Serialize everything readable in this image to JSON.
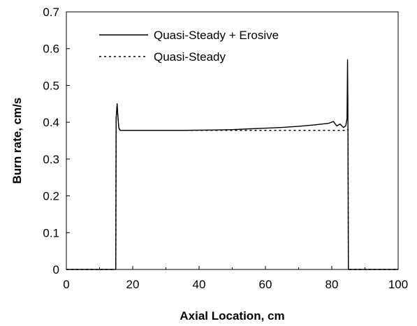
{
  "chart_data": {
    "type": "line",
    "xlabel": "Axial Location, cm",
    "ylabel": "Burn rate, cm/s",
    "xlim": [
      0,
      100
    ],
    "ylim": [
      0,
      0.7
    ],
    "xticks": [
      0,
      20,
      40,
      60,
      80,
      100
    ],
    "yticks": [
      0,
      0.1,
      0.2,
      0.3,
      0.4,
      0.5,
      0.6,
      0.7
    ],
    "xtick_labels": [
      "0",
      "20",
      "40",
      "60",
      "80",
      "100"
    ],
    "ytick_labels": [
      "0",
      "0.1",
      "0.2",
      "0.3",
      "0.4",
      "0.5",
      "0.6",
      "0.7"
    ],
    "grid": false,
    "legend_position": "top-left",
    "series": [
      {
        "name": "Quasi-Steady + Erosive",
        "style": "solid",
        "color": "#000000",
        "x": [
          0,
          14.9,
          15.0,
          15.3,
          15.5,
          15.8,
          16.2,
          17,
          25,
          35,
          45,
          50,
          55,
          60,
          65,
          70,
          75,
          79,
          80.5,
          81.5,
          82.5,
          83.5,
          84.2,
          84.6,
          84.75,
          84.85,
          85.0,
          100
        ],
        "y": [
          0,
          0,
          0.41,
          0.45,
          0.42,
          0.385,
          0.378,
          0.378,
          0.378,
          0.378,
          0.379,
          0.38,
          0.382,
          0.384,
          0.386,
          0.389,
          0.393,
          0.397,
          0.402,
          0.39,
          0.395,
          0.386,
          0.39,
          0.41,
          0.57,
          0.45,
          0,
          0
        ]
      },
      {
        "name": "Quasi-Steady",
        "style": "dashed",
        "color": "#000000",
        "x": [
          0,
          14.9,
          15.0,
          15.3,
          15.5,
          15.8,
          16.2,
          17,
          84.6,
          84.75,
          84.9,
          85.0,
          100
        ],
        "y": [
          0,
          0,
          0.41,
          0.45,
          0.42,
          0.385,
          0.378,
          0.378,
          0.378,
          0.38,
          0.38,
          0,
          0
        ]
      }
    ]
  }
}
